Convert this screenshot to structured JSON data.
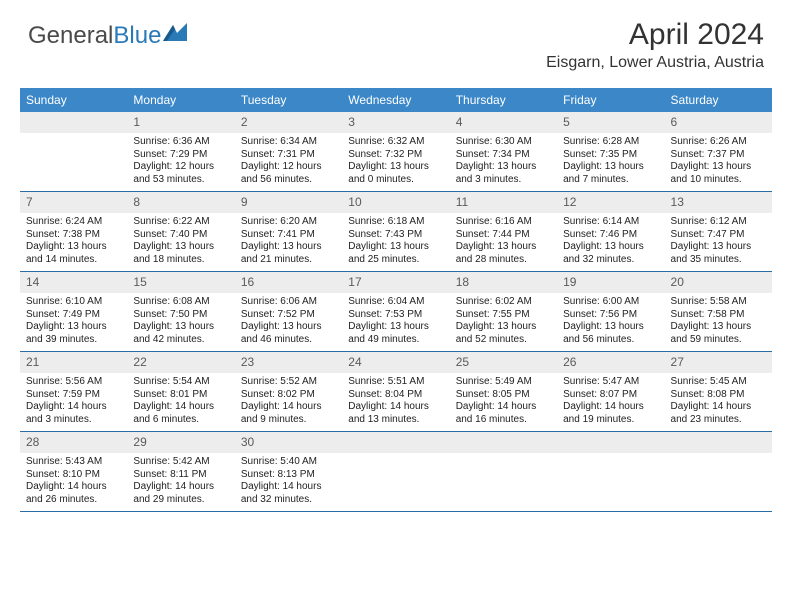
{
  "brand": {
    "name_gray": "General",
    "name_blue": "Blue"
  },
  "title": "April 2024",
  "location": "Eisgarn, Lower Austria, Austria",
  "colors": {
    "header_bg": "#3b87c8",
    "daynum_bg": "#ededed",
    "row_border": "#2a6ca3",
    "text": "#222222"
  },
  "typography": {
    "title_fontsize": 30,
    "location_fontsize": 16,
    "dow_fontsize": 12,
    "daynum_fontsize": 12,
    "details_fontsize": 10
  },
  "days_of_week": [
    "Sunday",
    "Monday",
    "Tuesday",
    "Wednesday",
    "Thursday",
    "Friday",
    "Saturday"
  ],
  "weeks": [
    [
      {
        "n": "",
        "sunrise": "",
        "sunset": "",
        "daylight1": "",
        "daylight2": ""
      },
      {
        "n": "1",
        "sunrise": "Sunrise: 6:36 AM",
        "sunset": "Sunset: 7:29 PM",
        "daylight1": "Daylight: 12 hours",
        "daylight2": "and 53 minutes."
      },
      {
        "n": "2",
        "sunrise": "Sunrise: 6:34 AM",
        "sunset": "Sunset: 7:31 PM",
        "daylight1": "Daylight: 12 hours",
        "daylight2": "and 56 minutes."
      },
      {
        "n": "3",
        "sunrise": "Sunrise: 6:32 AM",
        "sunset": "Sunset: 7:32 PM",
        "daylight1": "Daylight: 13 hours",
        "daylight2": "and 0 minutes."
      },
      {
        "n": "4",
        "sunrise": "Sunrise: 6:30 AM",
        "sunset": "Sunset: 7:34 PM",
        "daylight1": "Daylight: 13 hours",
        "daylight2": "and 3 minutes."
      },
      {
        "n": "5",
        "sunrise": "Sunrise: 6:28 AM",
        "sunset": "Sunset: 7:35 PM",
        "daylight1": "Daylight: 13 hours",
        "daylight2": "and 7 minutes."
      },
      {
        "n": "6",
        "sunrise": "Sunrise: 6:26 AM",
        "sunset": "Sunset: 7:37 PM",
        "daylight1": "Daylight: 13 hours",
        "daylight2": "and 10 minutes."
      }
    ],
    [
      {
        "n": "7",
        "sunrise": "Sunrise: 6:24 AM",
        "sunset": "Sunset: 7:38 PM",
        "daylight1": "Daylight: 13 hours",
        "daylight2": "and 14 minutes."
      },
      {
        "n": "8",
        "sunrise": "Sunrise: 6:22 AM",
        "sunset": "Sunset: 7:40 PM",
        "daylight1": "Daylight: 13 hours",
        "daylight2": "and 18 minutes."
      },
      {
        "n": "9",
        "sunrise": "Sunrise: 6:20 AM",
        "sunset": "Sunset: 7:41 PM",
        "daylight1": "Daylight: 13 hours",
        "daylight2": "and 21 minutes."
      },
      {
        "n": "10",
        "sunrise": "Sunrise: 6:18 AM",
        "sunset": "Sunset: 7:43 PM",
        "daylight1": "Daylight: 13 hours",
        "daylight2": "and 25 minutes."
      },
      {
        "n": "11",
        "sunrise": "Sunrise: 6:16 AM",
        "sunset": "Sunset: 7:44 PM",
        "daylight1": "Daylight: 13 hours",
        "daylight2": "and 28 minutes."
      },
      {
        "n": "12",
        "sunrise": "Sunrise: 6:14 AM",
        "sunset": "Sunset: 7:46 PM",
        "daylight1": "Daylight: 13 hours",
        "daylight2": "and 32 minutes."
      },
      {
        "n": "13",
        "sunrise": "Sunrise: 6:12 AM",
        "sunset": "Sunset: 7:47 PM",
        "daylight1": "Daylight: 13 hours",
        "daylight2": "and 35 minutes."
      }
    ],
    [
      {
        "n": "14",
        "sunrise": "Sunrise: 6:10 AM",
        "sunset": "Sunset: 7:49 PM",
        "daylight1": "Daylight: 13 hours",
        "daylight2": "and 39 minutes."
      },
      {
        "n": "15",
        "sunrise": "Sunrise: 6:08 AM",
        "sunset": "Sunset: 7:50 PM",
        "daylight1": "Daylight: 13 hours",
        "daylight2": "and 42 minutes."
      },
      {
        "n": "16",
        "sunrise": "Sunrise: 6:06 AM",
        "sunset": "Sunset: 7:52 PM",
        "daylight1": "Daylight: 13 hours",
        "daylight2": "and 46 minutes."
      },
      {
        "n": "17",
        "sunrise": "Sunrise: 6:04 AM",
        "sunset": "Sunset: 7:53 PM",
        "daylight1": "Daylight: 13 hours",
        "daylight2": "and 49 minutes."
      },
      {
        "n": "18",
        "sunrise": "Sunrise: 6:02 AM",
        "sunset": "Sunset: 7:55 PM",
        "daylight1": "Daylight: 13 hours",
        "daylight2": "and 52 minutes."
      },
      {
        "n": "19",
        "sunrise": "Sunrise: 6:00 AM",
        "sunset": "Sunset: 7:56 PM",
        "daylight1": "Daylight: 13 hours",
        "daylight2": "and 56 minutes."
      },
      {
        "n": "20",
        "sunrise": "Sunrise: 5:58 AM",
        "sunset": "Sunset: 7:58 PM",
        "daylight1": "Daylight: 13 hours",
        "daylight2": "and 59 minutes."
      }
    ],
    [
      {
        "n": "21",
        "sunrise": "Sunrise: 5:56 AM",
        "sunset": "Sunset: 7:59 PM",
        "daylight1": "Daylight: 14 hours",
        "daylight2": "and 3 minutes."
      },
      {
        "n": "22",
        "sunrise": "Sunrise: 5:54 AM",
        "sunset": "Sunset: 8:01 PM",
        "daylight1": "Daylight: 14 hours",
        "daylight2": "and 6 minutes."
      },
      {
        "n": "23",
        "sunrise": "Sunrise: 5:52 AM",
        "sunset": "Sunset: 8:02 PM",
        "daylight1": "Daylight: 14 hours",
        "daylight2": "and 9 minutes."
      },
      {
        "n": "24",
        "sunrise": "Sunrise: 5:51 AM",
        "sunset": "Sunset: 8:04 PM",
        "daylight1": "Daylight: 14 hours",
        "daylight2": "and 13 minutes."
      },
      {
        "n": "25",
        "sunrise": "Sunrise: 5:49 AM",
        "sunset": "Sunset: 8:05 PM",
        "daylight1": "Daylight: 14 hours",
        "daylight2": "and 16 minutes."
      },
      {
        "n": "26",
        "sunrise": "Sunrise: 5:47 AM",
        "sunset": "Sunset: 8:07 PM",
        "daylight1": "Daylight: 14 hours",
        "daylight2": "and 19 minutes."
      },
      {
        "n": "27",
        "sunrise": "Sunrise: 5:45 AM",
        "sunset": "Sunset: 8:08 PM",
        "daylight1": "Daylight: 14 hours",
        "daylight2": "and 23 minutes."
      }
    ],
    [
      {
        "n": "28",
        "sunrise": "Sunrise: 5:43 AM",
        "sunset": "Sunset: 8:10 PM",
        "daylight1": "Daylight: 14 hours",
        "daylight2": "and 26 minutes."
      },
      {
        "n": "29",
        "sunrise": "Sunrise: 5:42 AM",
        "sunset": "Sunset: 8:11 PM",
        "daylight1": "Daylight: 14 hours",
        "daylight2": "and 29 minutes."
      },
      {
        "n": "30",
        "sunrise": "Sunrise: 5:40 AM",
        "sunset": "Sunset: 8:13 PM",
        "daylight1": "Daylight: 14 hours",
        "daylight2": "and 32 minutes."
      },
      {
        "n": "",
        "sunrise": "",
        "sunset": "",
        "daylight1": "",
        "daylight2": ""
      },
      {
        "n": "",
        "sunrise": "",
        "sunset": "",
        "daylight1": "",
        "daylight2": ""
      },
      {
        "n": "",
        "sunrise": "",
        "sunset": "",
        "daylight1": "",
        "daylight2": ""
      },
      {
        "n": "",
        "sunrise": "",
        "sunset": "",
        "daylight1": "",
        "daylight2": ""
      }
    ]
  ]
}
